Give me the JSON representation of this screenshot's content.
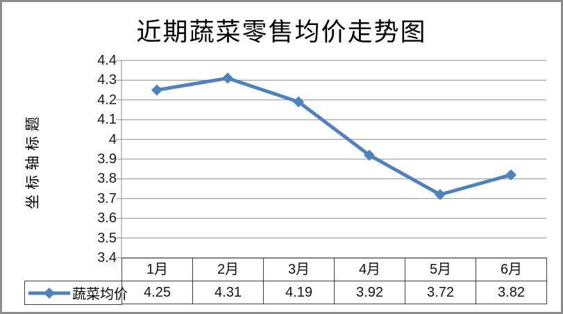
{
  "window": {
    "background_color": "#ffffff",
    "frame_color": "#8c8c8c"
  },
  "chart_data": {
    "type": "line",
    "title": "近期蔬菜零售均价走势图",
    "ylabel": "坐标轴标题",
    "xlabel": "",
    "categories": [
      "1月",
      "2月",
      "3月",
      "4月",
      "5月",
      "6月"
    ],
    "series": [
      {
        "name": "蔬菜均价",
        "values": [
          4.25,
          4.31,
          4.19,
          3.92,
          3.72,
          3.82
        ]
      }
    ],
    "value_labels": [
      "4.25",
      "4.31",
      "4.19",
      "3.92",
      "3.72",
      "3.82"
    ],
    "ylim": [
      3.4,
      4.4
    ],
    "yticks": [
      "4.4",
      "4.3",
      "4.2",
      "4.1",
      "4",
      "3.9",
      "3.8",
      "3.7",
      "3.6",
      "3.5",
      "3.4"
    ],
    "grid": true,
    "legend_position": "table-left",
    "marker_shape": "diamond",
    "series_color": "#4f81bd",
    "gridline_color": "#8e8e8e",
    "table_border_color": "#3f3f3f",
    "text_color": "#000000"
  }
}
